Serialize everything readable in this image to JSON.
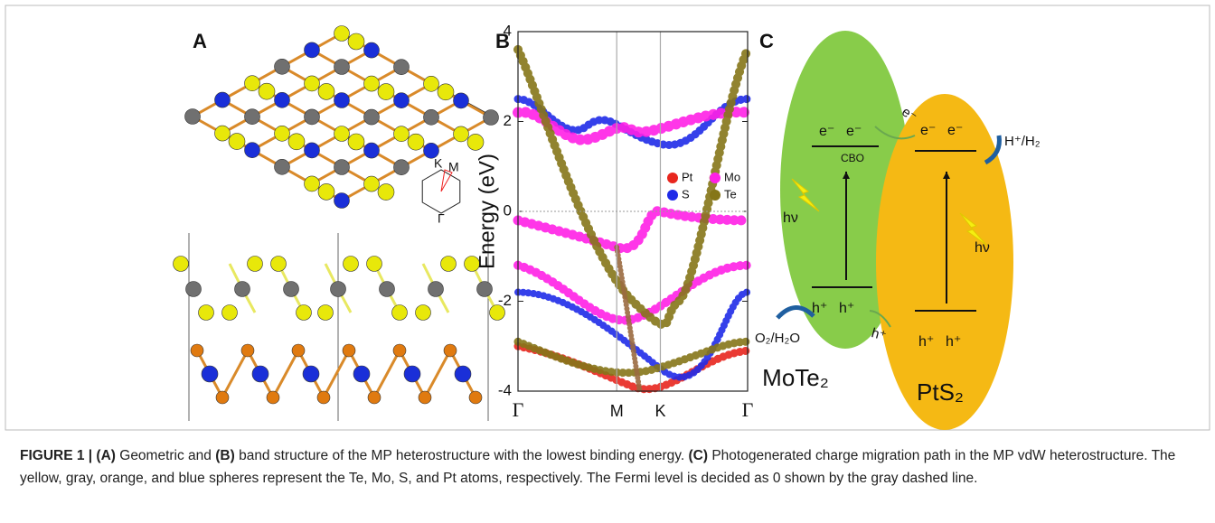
{
  "panel_a": {
    "label": "A",
    "bz_labels": [
      "K",
      "M",
      "Γ"
    ]
  },
  "panel_b": {
    "label": "B",
    "y_label": "Energy (eV)",
    "ylim": [
      -4,
      4
    ],
    "yticks": [
      4,
      2,
      0,
      -2,
      -4
    ],
    "k_points": [
      "Γ",
      "M",
      "K",
      "Γ"
    ],
    "legend": [
      {
        "name": "Pt",
        "color": "#e8261e"
      },
      {
        "name": "Mo",
        "color": "#ff20e6"
      },
      {
        "name": "S",
        "color": "#1f2be8"
      },
      {
        "name": "Te",
        "color": "#857618"
      }
    ]
  },
  "panel_c": {
    "label": "C",
    "left": {
      "name": "MoTe₂",
      "cb": [
        "e⁻",
        "e⁻"
      ],
      "vb": [
        "h⁺",
        "h⁺"
      ],
      "offset": "CBO",
      "light": "hν",
      "product": "O₂/H₂O"
    },
    "right": {
      "name": "PtS₂",
      "cb": [
        "e⁻",
        "e⁻"
      ],
      "vb": [
        "h⁺",
        "h⁺"
      ],
      "light": "hν",
      "product": "H⁺/H₂"
    },
    "transfer": [
      "e⁻",
      "h⁺"
    ]
  },
  "caption": [
    {
      "text": "FIGURE 1 | (A)",
      "bold": true
    },
    {
      "text": " Geometric and ",
      "bold": false
    },
    {
      "text": "(B)",
      "bold": true
    },
    {
      "text": " band structure of the MP heterostructure with the lowest binding energy. ",
      "bold": false
    },
    {
      "text": "(C)",
      "bold": true
    },
    {
      "text": " Photogenerated charge migration path in the MP vdW heterostructure. The yellow, gray, orange, and blue spheres represent the Te, Mo, S, and Pt atoms, respectively. The Fermi level is decided as 0 shown by the gray dashed line.",
      "bold": false
    }
  ]
}
